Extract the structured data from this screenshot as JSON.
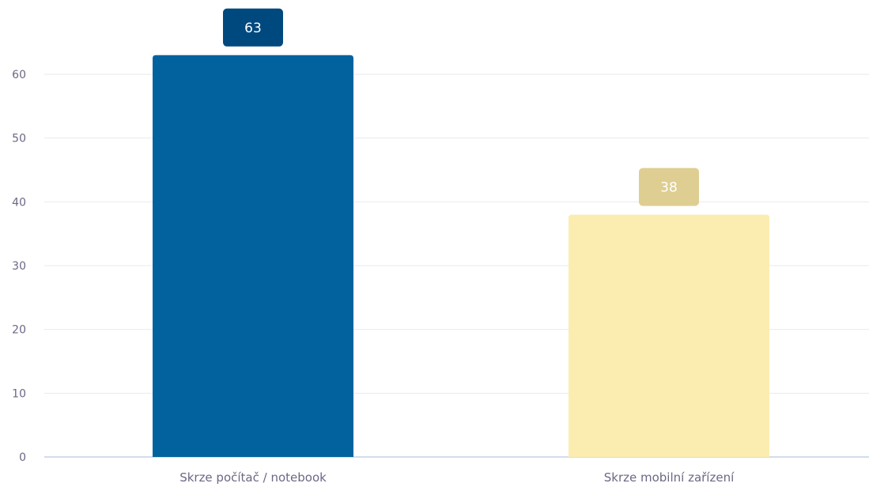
{
  "chart_data": {
    "type": "bar",
    "title": "",
    "xlabel": "",
    "ylabel": "",
    "categories": [
      "Skrze počítač / notebook",
      "Skrze mobilní zařízení"
    ],
    "values": [
      63,
      38
    ],
    "value_labels": [
      "63",
      "38"
    ],
    "ylim": [
      0,
      65
    ],
    "yticks": [
      0,
      10,
      20,
      30,
      40,
      50,
      60
    ],
    "ytick_labels": [
      "0",
      "10",
      "20",
      "30",
      "40",
      "50",
      "60"
    ],
    "grid": true,
    "legend": "none",
    "colors": {
      "bars": [
        "#02629E",
        "#FBEDB0"
      ],
      "labels": [
        "#00497F",
        "#DFCE91"
      ],
      "label_text": "#ffffff",
      "grid": "#E6EBF1",
      "axis": "#C5D0E6",
      "tick_text": "#6B6884"
    }
  }
}
